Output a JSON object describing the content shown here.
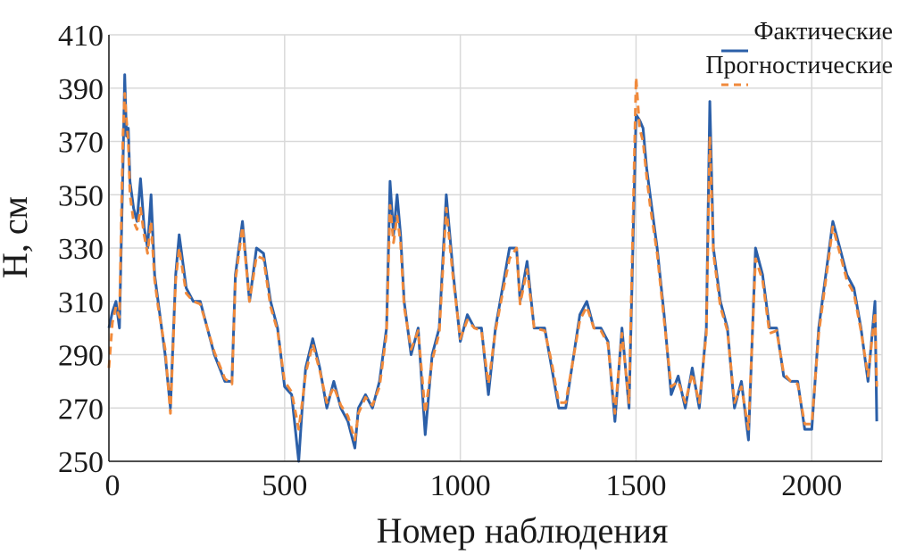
{
  "chart_data": {
    "type": "line",
    "xlabel": "Номер наблюдения",
    "ylabel": "H, см",
    "xlim": [
      0,
      2200
    ],
    "ylim": [
      250,
      410
    ],
    "xticks": [
      0,
      500,
      1000,
      1500,
      2000
    ],
    "yticks": [
      250,
      270,
      290,
      310,
      330,
      350,
      370,
      390,
      410
    ],
    "grid": true,
    "legend_position": "top-right",
    "series": [
      {
        "name": "Фактические",
        "color": "#2b5fa8",
        "style": "solid",
        "x": [
          0,
          10,
          20,
          30,
          40,
          45,
          50,
          55,
          60,
          70,
          80,
          90,
          100,
          110,
          120,
          130,
          140,
          160,
          175,
          190,
          200,
          220,
          240,
          260,
          300,
          330,
          350,
          360,
          380,
          400,
          420,
          440,
          460,
          480,
          500,
          520,
          540,
          550,
          560,
          580,
          600,
          620,
          640,
          660,
          680,
          700,
          710,
          730,
          750,
          770,
          790,
          800,
          810,
          820,
          830,
          840,
          850,
          860,
          880,
          900,
          920,
          940,
          960,
          980,
          1000,
          1020,
          1040,
          1060,
          1080,
          1100,
          1120,
          1140,
          1160,
          1170,
          1190,
          1210,
          1240,
          1260,
          1280,
          1300,
          1340,
          1360,
          1380,
          1400,
          1420,
          1440,
          1460,
          1480,
          1500,
          1510,
          1520,
          1530,
          1540,
          1560,
          1580,
          1600,
          1620,
          1640,
          1660,
          1680,
          1700,
          1710,
          1720,
          1740,
          1760,
          1780,
          1800,
          1820,
          1840,
          1860,
          1880,
          1900,
          1920,
          1940,
          1960,
          1980,
          2000,
          2020,
          2040,
          2060,
          2080,
          2100,
          2120,
          2140,
          2160,
          2180,
          2185
        ],
        "values": [
          300,
          306,
          310,
          300,
          360,
          395,
          372,
          375,
          355,
          345,
          340,
          356,
          338,
          330,
          350,
          320,
          310,
          290,
          270,
          320,
          335,
          315,
          310,
          310,
          290,
          280,
          280,
          320,
          340,
          310,
          330,
          328,
          310,
          300,
          278,
          275,
          250,
          270,
          285,
          296,
          285,
          270,
          280,
          270,
          265,
          255,
          270,
          275,
          270,
          280,
          300,
          355,
          335,
          350,
          335,
          310,
          300,
          290,
          300,
          260,
          290,
          300,
          350,
          320,
          295,
          305,
          300,
          300,
          275,
          300,
          315,
          330,
          330,
          310,
          325,
          300,
          300,
          285,
          270,
          270,
          305,
          310,
          300,
          300,
          295,
          265,
          300,
          270,
          380,
          378,
          375,
          360,
          350,
          330,
          305,
          275,
          282,
          270,
          285,
          270,
          300,
          385,
          330,
          310,
          300,
          270,
          280,
          258,
          330,
          320,
          300,
          300,
          282,
          280,
          280,
          262,
          262,
          300,
          320,
          340,
          330,
          320,
          315,
          300,
          280,
          310,
          265
        ]
      },
      {
        "name": "Прогностические",
        "color": "#f08a3c",
        "style": "dashed",
        "x": [
          0,
          10,
          20,
          30,
          40,
          45,
          50,
          55,
          60,
          70,
          80,
          90,
          100,
          110,
          120,
          130,
          140,
          160,
          175,
          190,
          200,
          220,
          240,
          260,
          300,
          330,
          350,
          360,
          380,
          400,
          420,
          440,
          460,
          480,
          500,
          520,
          540,
          550,
          560,
          580,
          600,
          620,
          640,
          660,
          680,
          700,
          710,
          730,
          750,
          770,
          790,
          800,
          810,
          820,
          830,
          840,
          850,
          860,
          880,
          900,
          920,
          940,
          960,
          980,
          1000,
          1020,
          1040,
          1060,
          1080,
          1100,
          1120,
          1140,
          1160,
          1170,
          1190,
          1210,
          1240,
          1260,
          1280,
          1300,
          1340,
          1360,
          1380,
          1400,
          1420,
          1440,
          1460,
          1480,
          1500,
          1510,
          1520,
          1530,
          1540,
          1560,
          1580,
          1600,
          1620,
          1640,
          1660,
          1680,
          1700,
          1710,
          1720,
          1740,
          1760,
          1780,
          1800,
          1820,
          1840,
          1860,
          1880,
          1900,
          1920,
          1940,
          1960,
          1980,
          2000,
          2020,
          2040,
          2060,
          2080,
          2100,
          2120,
          2140,
          2160,
          2180,
          2185
        ],
        "values": [
          285,
          302,
          308,
          304,
          372,
          388,
          378,
          370,
          350,
          340,
          337,
          345,
          335,
          328,
          340,
          318,
          308,
          292,
          268,
          318,
          330,
          313,
          310,
          309,
          291,
          281,
          279,
          318,
          338,
          310,
          327,
          326,
          308,
          299,
          280,
          276,
          262,
          272,
          283,
          294,
          284,
          272,
          278,
          271,
          267,
          258,
          268,
          274,
          271,
          278,
          298,
          346,
          332,
          342,
          332,
          308,
          300,
          292,
          299,
          268,
          288,
          298,
          345,
          318,
          296,
          303,
          300,
          299,
          279,
          299,
          313,
          326,
          330,
          309,
          322,
          300,
          299,
          287,
          272,
          272,
          303,
          308,
          300,
          299,
          294,
          268,
          298,
          272,
          394,
          375,
          370,
          357,
          346,
          328,
          303,
          278,
          280,
          272,
          283,
          272,
          298,
          372,
          328,
          308,
          299,
          272,
          278,
          262,
          326,
          318,
          298,
          299,
          283,
          280,
          279,
          264,
          264,
          298,
          318,
          338,
          328,
          318,
          313,
          299,
          282,
          306,
          278
        ]
      }
    ]
  }
}
